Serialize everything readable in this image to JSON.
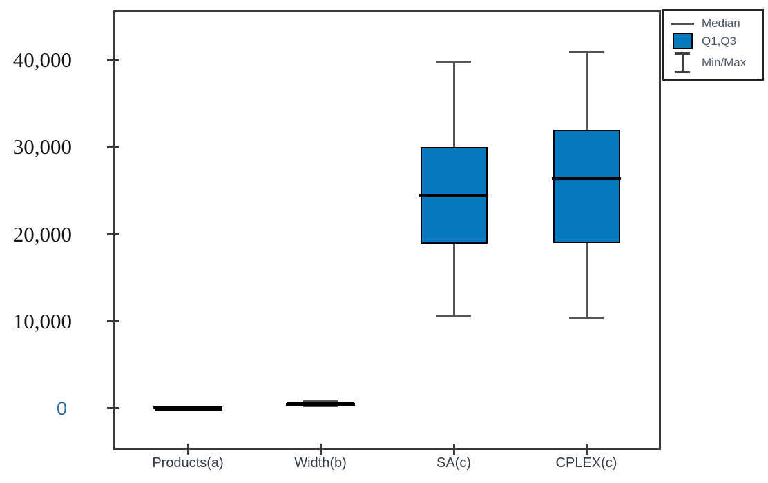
{
  "figure": {
    "background": "#ffffff"
  },
  "chart_data": {
    "type": "boxplot",
    "title": "",
    "xlabel": "",
    "ylabel": "",
    "grid": false,
    "categories": [
      "Products(a)",
      "Width(b)",
      "SA(c)",
      "CPLEX(c)"
    ],
    "series": [
      {
        "category": "Products(a)",
        "min": 0,
        "q1": 0,
        "median": 50,
        "q3": 100,
        "max": 100
      },
      {
        "category": "Width(b)",
        "min": 250,
        "q1": 350,
        "median": 500,
        "q3": 700,
        "max": 800
      },
      {
        "category": "SA(c)",
        "min": 10600,
        "q1": 18900,
        "median": 24500,
        "q3": 30000,
        "max": 39800
      },
      {
        "category": "CPLEX(c)",
        "min": 10300,
        "q1": 19000,
        "median": 26400,
        "q3": 32000,
        "max": 40900
      }
    ],
    "y_ticks": [
      {
        "value": 0,
        "label": "0"
      },
      {
        "value": 10000,
        "label": "10,000"
      },
      {
        "value": 20000,
        "label": "20,000"
      },
      {
        "value": 30000,
        "label": "30,000"
      },
      {
        "value": 40000,
        "label": "40,000"
      }
    ],
    "ylim": [
      -4762,
      45714
    ],
    "legend": {
      "position": "top-right-outside",
      "items": [
        {
          "swatch": "median-line",
          "label": "Median"
        },
        {
          "swatch": "q1q3-box",
          "label": "Q1,Q3"
        },
        {
          "swatch": "minmax-ibeam",
          "label": "Min/Max"
        }
      ]
    },
    "colors": {
      "box_fill": "#0779bd",
      "box_border": "#000000",
      "median_line": "#000000",
      "whisker": "#555555",
      "axis": "#3a3a3a",
      "y_label": "#141414",
      "y_label_zero": "#2e6fad",
      "x_label": "#333b47",
      "legend_text": "#4a5568",
      "background": "#ffffff"
    }
  }
}
